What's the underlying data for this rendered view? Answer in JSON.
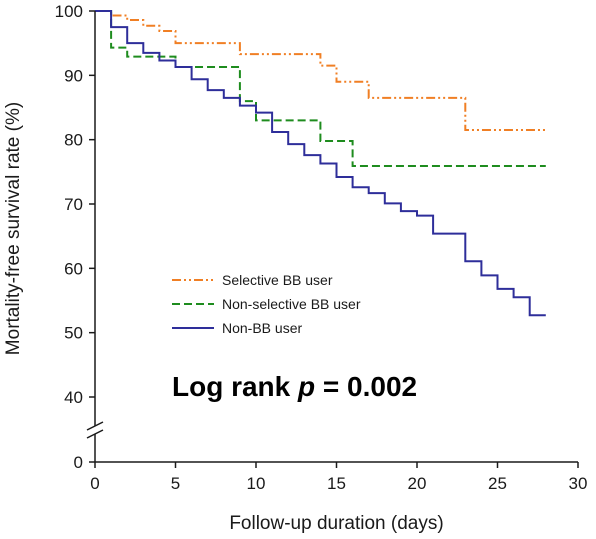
{
  "chart_data": {
    "type": "line",
    "step": true,
    "xlabel": "Follow-up duration (days)",
    "ylabel": "Mortality-free survival rate (%)",
    "xlim": [
      0,
      30
    ],
    "xticks": [
      0,
      5,
      10,
      15,
      20,
      25,
      30
    ],
    "yticks": [
      0,
      40,
      50,
      60,
      70,
      80,
      90,
      100
    ],
    "y_axis_break": [
      0,
      40
    ],
    "grid": false,
    "legend_position": "center-left",
    "annotation": {
      "prefix": "Log rank ",
      "italic": "p",
      "suffix": " = 0.002"
    },
    "series": [
      {
        "name": "Selective BB user",
        "color": "#f07f24",
        "dash": "dash-dot-dot",
        "x": [
          0,
          1,
          2,
          3,
          4,
          5,
          9,
          10,
          14,
          15,
          16,
          17,
          23,
          28
        ],
        "y": [
          100,
          99.3,
          98.6,
          97.7,
          96.9,
          95.0,
          93.3,
          93.3,
          91.5,
          89.0,
          89.0,
          86.5,
          81.5,
          81.5
        ]
      },
      {
        "name": "Non-selective BB user",
        "color": "#1e8c1e",
        "dash": "dashed",
        "x": [
          0,
          1,
          2,
          5,
          9,
          10,
          14,
          16,
          28
        ],
        "y": [
          100,
          94.3,
          92.9,
          91.3,
          86.0,
          83.0,
          79.8,
          75.9,
          75.9
        ]
      },
      {
        "name": "Non-BB user",
        "color": "#2e2e9a",
        "dash": "solid",
        "x": [
          0,
          1,
          2,
          3,
          4,
          5,
          6,
          7,
          8,
          9,
          10,
          11,
          12,
          13,
          14,
          15,
          16,
          17,
          18,
          19,
          20,
          21,
          23,
          24,
          25,
          26,
          27,
          28
        ],
        "y": [
          100,
          97.5,
          95.0,
          93.5,
          92.3,
          91.3,
          89.4,
          87.7,
          86.5,
          85.3,
          84.2,
          81.2,
          79.3,
          77.6,
          76.3,
          74.2,
          72.6,
          71.7,
          70.1,
          68.9,
          68.2,
          65.4,
          61.1,
          58.9,
          56.8,
          55.5,
          52.7,
          52.7
        ]
      }
    ]
  }
}
